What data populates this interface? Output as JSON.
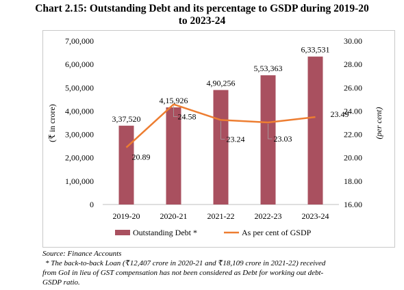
{
  "title_line1": "Chart 2.15: Outstanding Debt and its percentage to GSDP during 2019-20",
  "title_line2": "to 2023-24",
  "source": "Source: Finance Accounts",
  "footnote_line1": "* The back-to-back Loan (₹12,407 crore in 2020-21 and ₹18,109 crore in 2021-22) received",
  "footnote_line2": "from GoI in lieu of GST compensation has not been considered as Debt for working out debt-",
  "footnote_line3": "GSDP ratio.",
  "chart_data": {
    "type": "bar",
    "categories": [
      "2019-20",
      "2020-21",
      "2021-22",
      "2022-23",
      "2023-24"
    ],
    "series": [
      {
        "name": "Outstanding Debt *",
        "type": "bar",
        "axis": "left",
        "values": [
          337520,
          415926,
          490256,
          553363,
          633531
        ],
        "labels": [
          "3,37,520",
          "4,15,926",
          "4,90,256",
          "5,53,363",
          "6,33,531"
        ],
        "color": "#a9505f"
      },
      {
        "name": "As per cent of GSDP",
        "type": "line",
        "axis": "right",
        "values": [
          20.89,
          24.58,
          23.24,
          23.03,
          23.49
        ],
        "labels": [
          "20.89",
          "24.58",
          "23.24",
          "23.03",
          "23.49"
        ],
        "color": "#ed7d31"
      }
    ],
    "ylabel_left": "(₹ in crore)",
    "ylabel_right": "(per cent)",
    "ylim_left": [
      0,
      700000
    ],
    "ylim_right": [
      16,
      30
    ],
    "yticks_left": [
      "0",
      "1,00,000",
      "2,00,000",
      "3,00,000",
      "4,00,000",
      "5,00,000",
      "6,00,000",
      "7,00,000"
    ],
    "yticks_right": [
      "16.00",
      "18.00",
      "20.00",
      "22.00",
      "24.00",
      "26.00",
      "28.00",
      "30.00"
    ],
    "grid": false,
    "legend_position": "bottom"
  }
}
